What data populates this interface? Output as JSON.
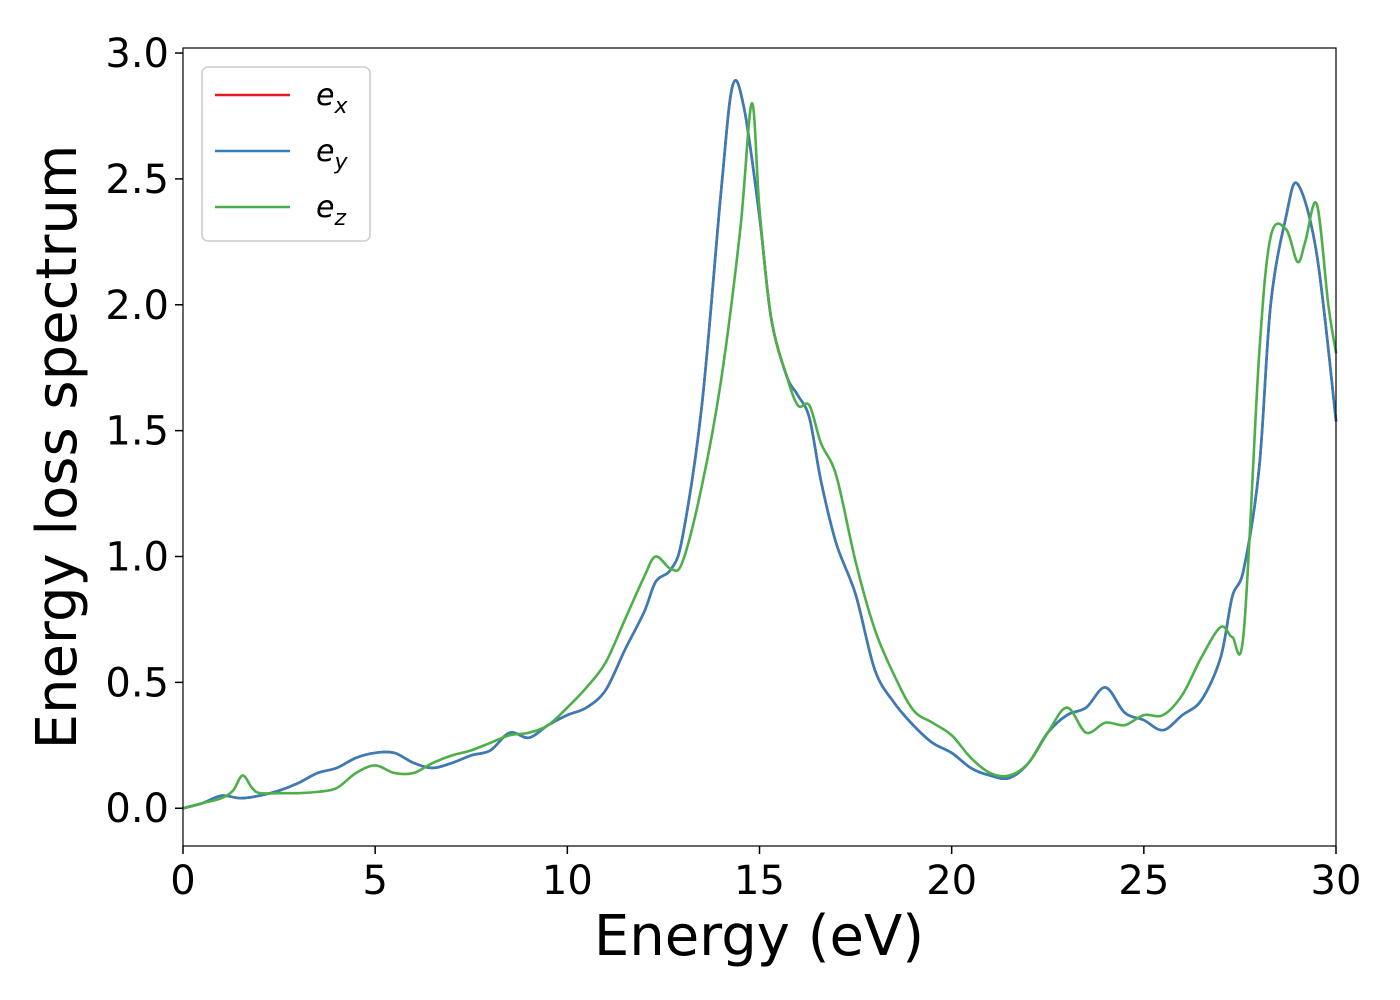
{
  "chart_data": {
    "type": "line",
    "xlabel": "Energy (eV)",
    "ylabel": "Energy loss spectrum",
    "xlim": [
      0,
      30
    ],
    "ylim": [
      -0.15,
      3.02
    ],
    "x_ticks": [
      0,
      5,
      10,
      15,
      20,
      25,
      30
    ],
    "x_tick_labels": [
      "0",
      "5",
      "10",
      "15",
      "20",
      "25",
      "30"
    ],
    "y_ticks": [
      0.0,
      0.5,
      1.0,
      1.5,
      2.0,
      2.5,
      3.0
    ],
    "y_tick_labels": [
      "0.0",
      "0.5",
      "1.0",
      "1.5",
      "2.0",
      "2.5",
      "3.0"
    ],
    "grid": false,
    "legend_placement": "upper-left",
    "series": [
      {
        "name": "e",
        "subscript": "x",
        "color": "#e41a1c",
        "x": [
          0,
          0.5,
          1,
          1.5,
          2,
          2.5,
          3,
          3.5,
          4,
          4.5,
          5,
          5.5,
          6,
          6.5,
          7,
          7.5,
          8,
          8.5,
          9,
          9.5,
          10,
          10.5,
          11,
          11.5,
          12,
          12.3,
          12.7,
          13,
          13.5,
          14,
          14.3,
          14.6,
          15,
          15.3,
          15.7,
          16,
          16.3,
          16.6,
          17,
          17.5,
          18,
          18.5,
          19,
          19.5,
          20,
          20.5,
          21,
          21.5,
          22,
          22.5,
          23,
          23.5,
          24,
          24.5,
          25,
          25.5,
          26,
          26.5,
          27,
          27.3,
          27.6,
          28,
          28.3,
          28.7,
          29,
          29.5,
          30
        ],
        "y": [
          0,
          0.02,
          0.05,
          0.04,
          0.05,
          0.07,
          0.1,
          0.14,
          0.16,
          0.2,
          0.22,
          0.22,
          0.18,
          0.16,
          0.18,
          0.21,
          0.23,
          0.3,
          0.28,
          0.33,
          0.37,
          0.4,
          0.47,
          0.63,
          0.78,
          0.9,
          0.95,
          1.08,
          1.6,
          2.45,
          2.87,
          2.78,
          2.35,
          1.95,
          1.72,
          1.64,
          1.55,
          1.3,
          1.05,
          0.85,
          0.55,
          0.42,
          0.33,
          0.26,
          0.22,
          0.16,
          0.13,
          0.12,
          0.18,
          0.3,
          0.37,
          0.4,
          0.48,
          0.38,
          0.35,
          0.31,
          0.37,
          0.43,
          0.6,
          0.84,
          0.95,
          1.35,
          2.0,
          2.35,
          2.48,
          2.2,
          1.54
        ]
      },
      {
        "name": "e",
        "subscript": "y",
        "color": "#377eb8",
        "x": [
          0,
          0.5,
          1,
          1.5,
          2,
          2.5,
          3,
          3.5,
          4,
          4.5,
          5,
          5.5,
          6,
          6.5,
          7,
          7.5,
          8,
          8.5,
          9,
          9.5,
          10,
          10.5,
          11,
          11.5,
          12,
          12.3,
          12.7,
          13,
          13.5,
          14,
          14.3,
          14.6,
          15,
          15.3,
          15.7,
          16,
          16.3,
          16.6,
          17,
          17.5,
          18,
          18.5,
          19,
          19.5,
          20,
          20.5,
          21,
          21.5,
          22,
          22.5,
          23,
          23.5,
          24,
          24.5,
          25,
          25.5,
          26,
          26.5,
          27,
          27.3,
          27.6,
          28,
          28.3,
          28.7,
          29,
          29.5,
          30
        ],
        "y": [
          0,
          0.02,
          0.05,
          0.04,
          0.05,
          0.07,
          0.1,
          0.14,
          0.16,
          0.2,
          0.22,
          0.22,
          0.18,
          0.16,
          0.18,
          0.21,
          0.23,
          0.3,
          0.28,
          0.33,
          0.37,
          0.4,
          0.47,
          0.63,
          0.78,
          0.9,
          0.95,
          1.08,
          1.6,
          2.45,
          2.87,
          2.78,
          2.35,
          1.95,
          1.72,
          1.64,
          1.55,
          1.3,
          1.05,
          0.85,
          0.55,
          0.42,
          0.33,
          0.26,
          0.22,
          0.16,
          0.13,
          0.12,
          0.18,
          0.3,
          0.37,
          0.4,
          0.48,
          0.38,
          0.35,
          0.31,
          0.37,
          0.43,
          0.6,
          0.84,
          0.95,
          1.35,
          2.0,
          2.35,
          2.48,
          2.2,
          1.54
        ]
      },
      {
        "name": "e",
        "subscript": "z",
        "color": "#4daf4a",
        "x": [
          0,
          0.5,
          1,
          1.3,
          1.55,
          1.8,
          2,
          2.5,
          3,
          3.5,
          4,
          4.5,
          5,
          5.5,
          6,
          6.5,
          7,
          7.5,
          8,
          8.5,
          9,
          9.5,
          10,
          10.5,
          11,
          11.5,
          12,
          12.3,
          12.7,
          13,
          13.5,
          14,
          14.5,
          14.8,
          15,
          15.3,
          15.7,
          16,
          16.3,
          16.6,
          17,
          17.5,
          18,
          18.5,
          19,
          19.5,
          20,
          20.5,
          21,
          21.5,
          22,
          22.5,
          23,
          23.5,
          24,
          24.5,
          25,
          25.5,
          26,
          26.5,
          27,
          27.3,
          27.6,
          28,
          28.3,
          28.7,
          29,
          29.2,
          29.5,
          29.8,
          30
        ],
        "y": [
          0,
          0.02,
          0.04,
          0.07,
          0.13,
          0.08,
          0.06,
          0.06,
          0.06,
          0.065,
          0.08,
          0.14,
          0.17,
          0.14,
          0.14,
          0.18,
          0.21,
          0.23,
          0.26,
          0.29,
          0.3,
          0.33,
          0.4,
          0.48,
          0.58,
          0.75,
          0.92,
          1.0,
          0.95,
          0.98,
          1.28,
          1.7,
          2.3,
          2.8,
          2.38,
          1.95,
          1.72,
          1.6,
          1.6,
          1.45,
          1.32,
          0.98,
          0.71,
          0.53,
          0.39,
          0.34,
          0.29,
          0.2,
          0.14,
          0.13,
          0.18,
          0.3,
          0.4,
          0.3,
          0.34,
          0.33,
          0.37,
          0.37,
          0.45,
          0.6,
          0.72,
          0.68,
          0.7,
          1.8,
          2.27,
          2.3,
          2.17,
          2.25,
          2.4,
          2.0,
          1.81
        ]
      }
    ]
  }
}
